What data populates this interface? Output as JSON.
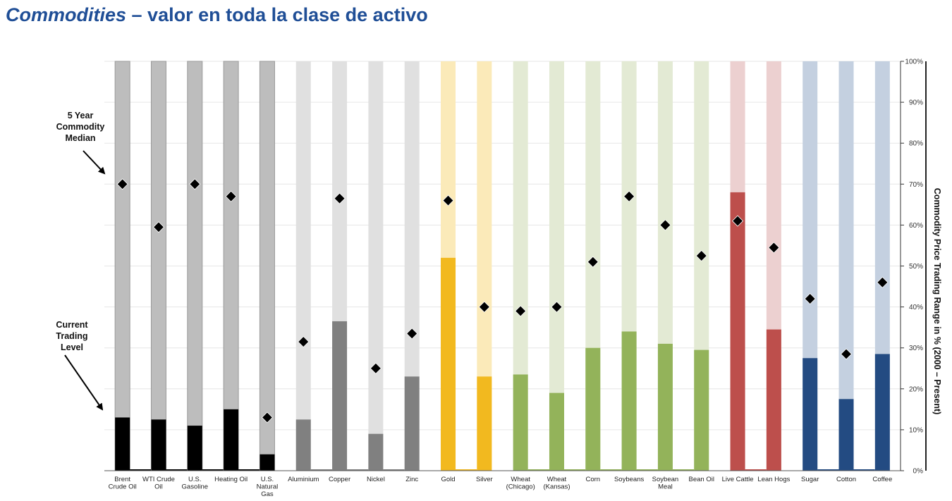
{
  "title": {
    "italic": "Commodities",
    "rest": " – valor en toda la clase de activo"
  },
  "annotations": {
    "median": [
      "5 Year",
      "Commodity",
      "Median"
    ],
    "current": [
      "Current",
      "Trading",
      "Level"
    ]
  },
  "chart_data": {
    "type": "bar",
    "ylabel": "Commodity Price Trading Range in % (2000 – Present)",
    "ylim": [
      0,
      100
    ],
    "yticks": [
      "0%",
      "10%",
      "20%",
      "30%",
      "40%",
      "50%",
      "60%",
      "70%",
      "80%",
      "90%",
      "100%"
    ],
    "grid": true,
    "series_meaning": {
      "current": "Current Trading Level",
      "median": "5 Year Commodity Median"
    },
    "groups": [
      {
        "name": "energy",
        "light": "#bdbdbd",
        "dark": "#000000"
      },
      {
        "name": "metals",
        "light": "#e0e0e0",
        "dark": "#808080"
      },
      {
        "name": "precious",
        "light": "#fbeab9",
        "dark": "#f2b91f"
      },
      {
        "name": "grains",
        "light": "#e3ead4",
        "dark": "#93b35a"
      },
      {
        "name": "livestock",
        "light": "#ecd0d0",
        "dark": "#bd4f4c"
      },
      {
        "name": "softs",
        "light": "#c4d0e0",
        "dark": "#234b82"
      }
    ],
    "categories": [
      {
        "label": [
          "Brent",
          "Crude Oil"
        ],
        "group": 0,
        "current": 13,
        "median": 70
      },
      {
        "label": [
          "WTI Crude",
          "Oil"
        ],
        "group": 0,
        "current": 12.5,
        "median": 59.5
      },
      {
        "label": [
          "U.S.",
          "Gasoline"
        ],
        "group": 0,
        "current": 11,
        "median": 70
      },
      {
        "label": [
          "Heating Oil"
        ],
        "group": 0,
        "current": 15,
        "median": 67
      },
      {
        "label": [
          "U.S.",
          "Natural",
          "Gas"
        ],
        "group": 0,
        "current": 4,
        "median": 13
      },
      {
        "label": [
          "Aluminium"
        ],
        "group": 1,
        "current": 12.5,
        "median": 31.5
      },
      {
        "label": [
          "Copper"
        ],
        "group": 1,
        "current": 36.5,
        "median": 66.5
      },
      {
        "label": [
          "Nickel"
        ],
        "group": 1,
        "current": 9,
        "median": 25
      },
      {
        "label": [
          "Zinc"
        ],
        "group": 1,
        "current": 23,
        "median": 33.5
      },
      {
        "label": [
          "Gold"
        ],
        "group": 2,
        "current": 52,
        "median": 66
      },
      {
        "label": [
          "Silver"
        ],
        "group": 2,
        "current": 23,
        "median": 40
      },
      {
        "label": [
          "Wheat",
          "(Chicago)"
        ],
        "group": 3,
        "current": 23.5,
        "median": 39
      },
      {
        "label": [
          "Wheat",
          "(Kansas)"
        ],
        "group": 3,
        "current": 19,
        "median": 40
      },
      {
        "label": [
          "Corn"
        ],
        "group": 3,
        "current": 30,
        "median": 51
      },
      {
        "label": [
          "Soybeans"
        ],
        "group": 3,
        "current": 34,
        "median": 67
      },
      {
        "label": [
          "Soybean",
          "Meal"
        ],
        "group": 3,
        "current": 31,
        "median": 60
      },
      {
        "label": [
          "Bean Oil"
        ],
        "group": 3,
        "current": 29.5,
        "median": 52.5
      },
      {
        "label": [
          "Live Cattle"
        ],
        "group": 4,
        "current": 68,
        "median": 61
      },
      {
        "label": [
          "Lean Hogs"
        ],
        "group": 4,
        "current": 34.5,
        "median": 54.5
      },
      {
        "label": [
          "Sugar"
        ],
        "group": 5,
        "current": 27.5,
        "median": 42
      },
      {
        "label": [
          "Cotton"
        ],
        "group": 5,
        "current": 17.5,
        "median": 28.5
      },
      {
        "label": [
          "Coffee"
        ],
        "group": 5,
        "current": 28.5,
        "median": 46
      }
    ]
  }
}
